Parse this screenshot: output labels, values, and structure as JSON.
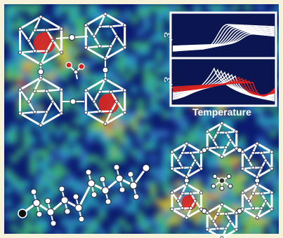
{
  "colors": {
    "border": "#f6f1d9",
    "map_base": "#0b1a6e",
    "structure": "#ffffff"
  },
  "inset": {
    "x_axis_label": "Temperature",
    "upper_panel_label": "ε'",
    "lower_panel_label": "ε''"
  }
}
